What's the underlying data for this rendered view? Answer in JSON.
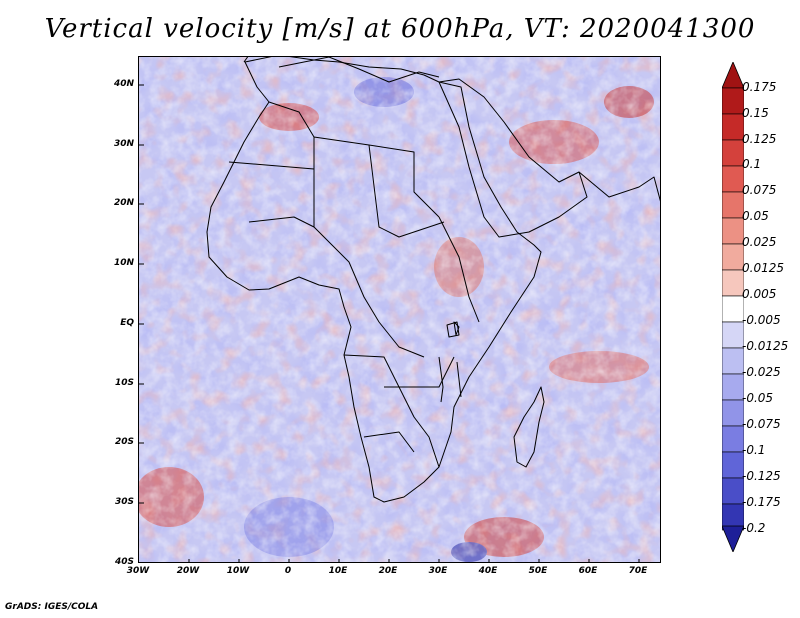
{
  "title": "Vertical velocity [m/s] at 600hPa, VT: 2020041300",
  "credit": "GrADS: IGES/COLA",
  "map": {
    "variable": "vertical velocity",
    "units": "m/s",
    "level": "600hPa",
    "valid_time": "2020041300",
    "lat_labels": [
      "40N",
      "30N",
      "20N",
      "10N",
      "EQ",
      "10S",
      "20S",
      "30S",
      "40S"
    ],
    "lon_labels": [
      "30W",
      "20W",
      "10W",
      "0",
      "10E",
      "20E",
      "30E",
      "40E",
      "50E",
      "60E",
      "70E"
    ]
  },
  "colorbar": {
    "levels": [
      "0.175",
      "0.15",
      "0.125",
      "0.1",
      "0.075",
      "0.05",
      "0.025",
      "0.0125",
      "0.005",
      "-0.005",
      "-0.0125",
      "-0.025",
      "-0.05",
      "-0.075",
      "-0.1",
      "-0.125",
      "-0.175",
      "-0.2"
    ],
    "colors": [
      "#b01a1a",
      "#c52a28",
      "#d4413c",
      "#e05a52",
      "#e6756a",
      "#ec9184",
      "#f1ab9e",
      "#f6c7bd",
      "#ffffff",
      "#d5d6f6",
      "#bcbff2",
      "#a7aaee",
      "#9194e8",
      "#7a7de2",
      "#6065d8",
      "#4a4ec8",
      "#3336b3"
    ],
    "top_color": "#a01313",
    "bottom_color": "#1e1f98"
  }
}
